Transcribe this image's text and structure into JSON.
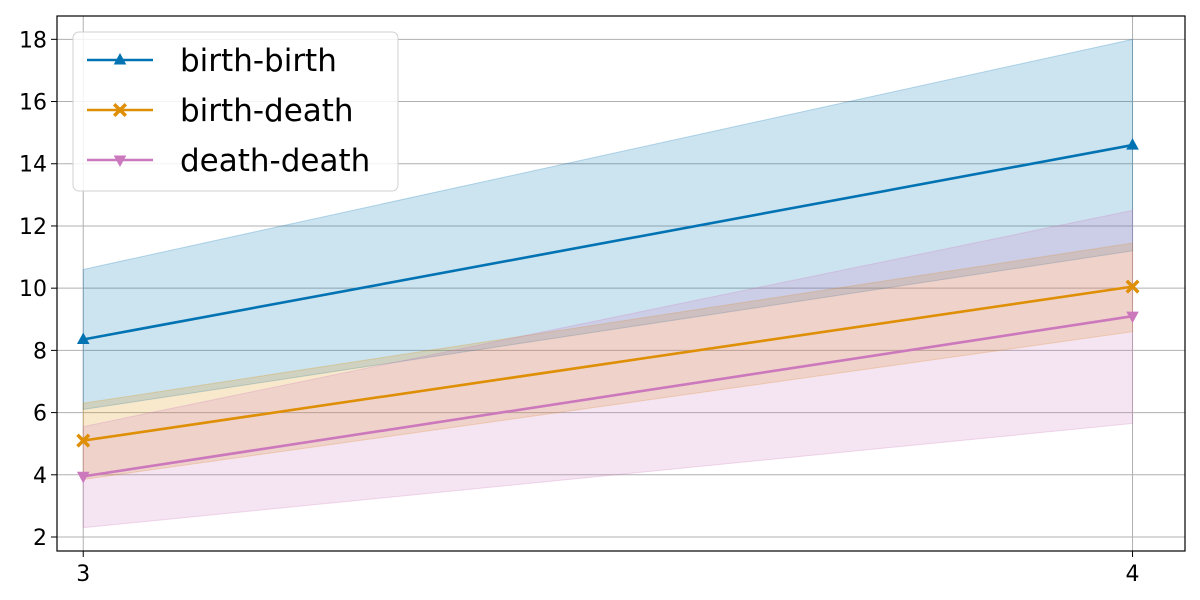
{
  "chart_data": {
    "type": "line",
    "title": "",
    "xlabel": "",
    "ylabel": "",
    "x": [
      3,
      4
    ],
    "xlim": [
      2.975,
      4.05
    ],
    "ylim": [
      1.55,
      18.75
    ],
    "xticks": [
      3,
      4
    ],
    "yticks": [
      2,
      4,
      6,
      8,
      10,
      12,
      14,
      16,
      18
    ],
    "grid": true,
    "legend_position": "top-left",
    "series": [
      {
        "name": "birth-birth",
        "values": [
          8.35,
          14.6
        ],
        "lower": [
          6.1,
          11.2
        ],
        "upper": [
          10.6,
          18.0
        ],
        "color": "#0173b2",
        "marker": "triangle-up"
      },
      {
        "name": "birth-death",
        "values": [
          5.1,
          10.05
        ],
        "lower": [
          3.85,
          8.6
        ],
        "upper": [
          6.3,
          11.45
        ],
        "color": "#de8f05",
        "marker": "x-filled"
      },
      {
        "name": "death-death",
        "values": [
          3.95,
          9.1
        ],
        "lower": [
          2.3,
          5.65
        ],
        "upper": [
          5.55,
          12.5
        ],
        "color": "#cc78bc",
        "marker": "triangle-down"
      }
    ]
  }
}
